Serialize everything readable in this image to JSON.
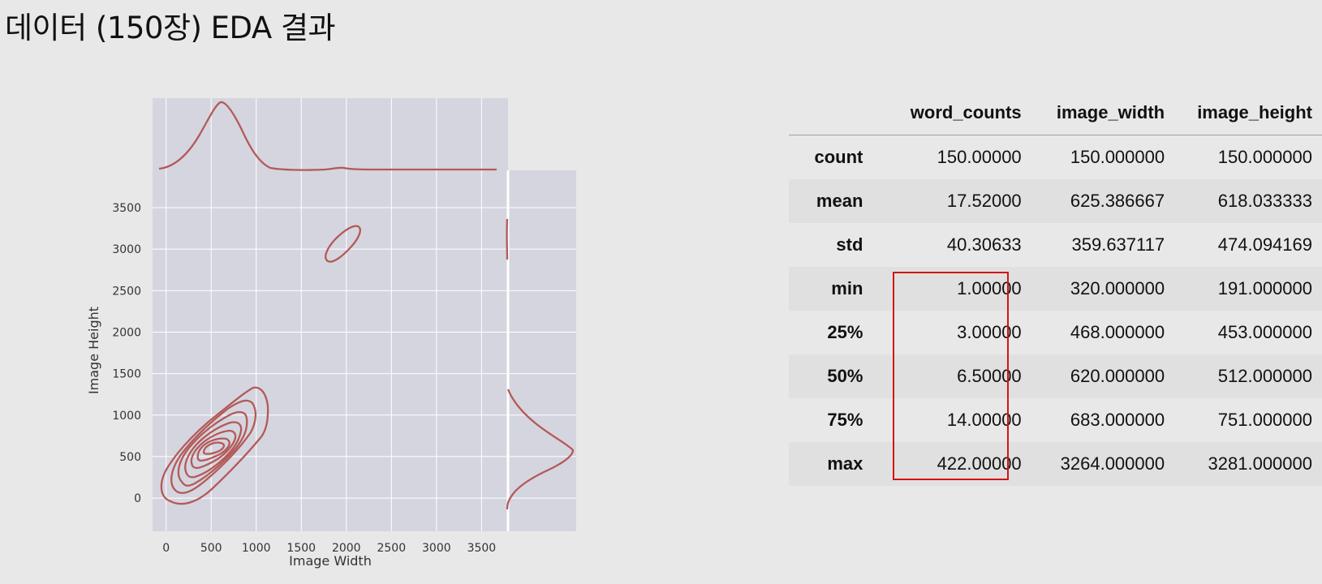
{
  "title": "데이터 (150장) EDA 결과",
  "chart_data": {
    "type": "kde-jointplot",
    "xlabel": "Image Width",
    "ylabel": "Image Height",
    "xlim": [
      -150,
      4550
    ],
    "ylim": [
      -400,
      3950
    ],
    "xticks": [
      0,
      500,
      1000,
      1500,
      2000,
      2500,
      3000,
      3500
    ],
    "yticks": [
      0,
      500,
      1000,
      1500,
      2000,
      2500,
      3000,
      3500
    ],
    "grid": true,
    "line_color": "#b35a58",
    "contour_center": [
      620,
      530
    ],
    "secondary_contour_center": [
      1970,
      3020
    ],
    "marginal_x_peak": 620,
    "marginal_y_peak": 500
  },
  "stats_table": {
    "columns": [
      "word_counts",
      "image_width",
      "image_height"
    ],
    "rows": [
      {
        "label": "count",
        "values": [
          "150.00000",
          "150.000000",
          "150.000000"
        ]
      },
      {
        "label": "mean",
        "values": [
          "17.52000",
          "625.386667",
          "618.033333"
        ]
      },
      {
        "label": "std",
        "values": [
          "40.30633",
          "359.637117",
          "474.094169"
        ]
      },
      {
        "label": "min",
        "values": [
          "1.00000",
          "320.000000",
          "191.000000"
        ]
      },
      {
        "label": "25%",
        "values": [
          "3.00000",
          "468.000000",
          "453.000000"
        ]
      },
      {
        "label": "50%",
        "values": [
          "6.50000",
          "620.000000",
          "512.000000"
        ]
      },
      {
        "label": "75%",
        "values": [
          "14.00000",
          "683.000000",
          "751.000000"
        ]
      },
      {
        "label": "max",
        "values": [
          "422.00000",
          "3264.000000",
          "3281.000000"
        ]
      }
    ],
    "highlight_color": "#d41414"
  }
}
